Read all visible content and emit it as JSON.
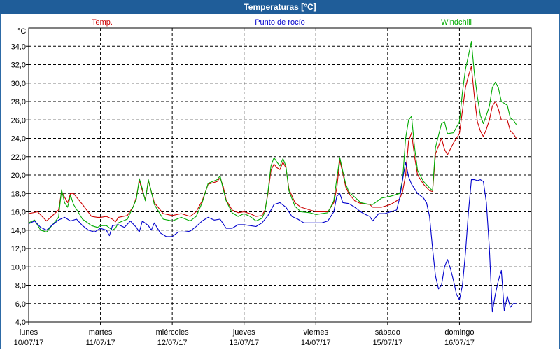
{
  "window": {
    "title": "Temperaturas [°C]"
  },
  "chart_data": {
    "type": "line",
    "title": "Temperaturas [°C]",
    "ylabel": "°C",
    "ylim": [
      4,
      36
    ],
    "yticks": [
      "4,0",
      "6,0",
      "8,0",
      "10,0",
      "12,0",
      "14,0",
      "16,0",
      "18,0",
      "20,0",
      "22,0",
      "24,0",
      "26,0",
      "28,0",
      "30,0",
      "32,0",
      "34,0"
    ],
    "grid": true,
    "day_ticks": [
      {
        "day": "lunes",
        "date": "10/07/17"
      },
      {
        "day": "martes",
        "date": "11/07/17"
      },
      {
        "day": "miércoles",
        "date": "12/07/17"
      },
      {
        "day": "jueves",
        "date": "13/07/17"
      },
      {
        "day": "viernes",
        "date": "14/07/17"
      },
      {
        "day": "sábado",
        "date": "15/07/17"
      },
      {
        "day": "domingo",
        "date": "16/07/17"
      }
    ],
    "x_unit": "hours from 10/07/17 00:00",
    "x_range": [
      0,
      168
    ],
    "series": [
      {
        "name": "Temp.",
        "color": "#cc0000",
        "points": [
          [
            0,
            15.8
          ],
          [
            3,
            16.0
          ],
          [
            6,
            15.0
          ],
          [
            8,
            15.6
          ],
          [
            10,
            16.2
          ],
          [
            11,
            18.2
          ],
          [
            12,
            17.6
          ],
          [
            13,
            17.0
          ],
          [
            14,
            18.0
          ],
          [
            15,
            18.0
          ],
          [
            18,
            16.8
          ],
          [
            21,
            15.5
          ],
          [
            23,
            15.4
          ],
          [
            24,
            15.4
          ],
          [
            26,
            15.5
          ],
          [
            28,
            15.2
          ],
          [
            29,
            14.9
          ],
          [
            30,
            15.4
          ],
          [
            33,
            15.6
          ],
          [
            35,
            16.6
          ],
          [
            36,
            17.6
          ],
          [
            37,
            19.4
          ],
          [
            38,
            18.3
          ],
          [
            39,
            17.3
          ],
          [
            40,
            19.4
          ],
          [
            41,
            18.2
          ],
          [
            42,
            17.0
          ],
          [
            45,
            15.8
          ],
          [
            48,
            15.6
          ],
          [
            51,
            15.8
          ],
          [
            54,
            15.5
          ],
          [
            56,
            16.0
          ],
          [
            58,
            17.2
          ],
          [
            60,
            19.0
          ],
          [
            63,
            19.3
          ],
          [
            64,
            19.7
          ],
          [
            65,
            18.8
          ],
          [
            66,
            17.3
          ],
          [
            68,
            16.2
          ],
          [
            70,
            15.9
          ],
          [
            72,
            16.0
          ],
          [
            74,
            15.8
          ],
          [
            76,
            15.5
          ],
          [
            78,
            15.6
          ],
          [
            79,
            16.2
          ],
          [
            80,
            18.0
          ],
          [
            81,
            20.5
          ],
          [
            82,
            21.2
          ],
          [
            83,
            20.8
          ],
          [
            84,
            20.6
          ],
          [
            85,
            21.4
          ],
          [
            86,
            20.8
          ],
          [
            87,
            18.5
          ],
          [
            89,
            17.0
          ],
          [
            91,
            16.5
          ],
          [
            94,
            16.2
          ],
          [
            96,
            16.0
          ],
          [
            98,
            16.0
          ],
          [
            100,
            16.0
          ],
          [
            102,
            17.0
          ],
          [
            103,
            18.6
          ],
          [
            104,
            21.6
          ],
          [
            105,
            20.2
          ],
          [
            106,
            18.7
          ],
          [
            107,
            18.0
          ],
          [
            109,
            17.2
          ],
          [
            111,
            16.9
          ],
          [
            114,
            16.8
          ],
          [
            115,
            16.5
          ],
          [
            118,
            16.5
          ],
          [
            121,
            16.8
          ],
          [
            124,
            17.4
          ],
          [
            125,
            18.2
          ],
          [
            126,
            20.0
          ],
          [
            127,
            23.7
          ],
          [
            128,
            24.6
          ],
          [
            129,
            22.0
          ],
          [
            130,
            20.0
          ],
          [
            132,
            19.0
          ],
          [
            134,
            18.3
          ],
          [
            135,
            18.2
          ],
          [
            136,
            22.3
          ],
          [
            138,
            24.0
          ],
          [
            139,
            22.8
          ],
          [
            140,
            22.2
          ],
          [
            142,
            23.5
          ],
          [
            144,
            24.5
          ],
          [
            145,
            27.0
          ],
          [
            146,
            29.5
          ],
          [
            147,
            30.8
          ],
          [
            148,
            31.8
          ],
          [
            149,
            28.5
          ],
          [
            150,
            25.8
          ],
          [
            151,
            24.8
          ],
          [
            152,
            24.2
          ],
          [
            153,
            25.0
          ],
          [
            154,
            26.0
          ],
          [
            155,
            27.5
          ],
          [
            156,
            28.0
          ],
          [
            157,
            27.2
          ],
          [
            158,
            26.0
          ],
          [
            160,
            26.0
          ],
          [
            161,
            24.8
          ],
          [
            162,
            24.5
          ],
          [
            163,
            24.0
          ]
        ]
      },
      {
        "name": "Punto de rocío",
        "color": "#0000cc",
        "points": [
          [
            0,
            14.7
          ],
          [
            2,
            15.0
          ],
          [
            4,
            14.3
          ],
          [
            6,
            14.0
          ],
          [
            8,
            14.6
          ],
          [
            10,
            15.1
          ],
          [
            12,
            15.4
          ],
          [
            14,
            15.0
          ],
          [
            16,
            15.2
          ],
          [
            18,
            14.5
          ],
          [
            20,
            14.0
          ],
          [
            22,
            13.8
          ],
          [
            24,
            14.2
          ],
          [
            26,
            14.0
          ],
          [
            27,
            13.4
          ],
          [
            28,
            14.5
          ],
          [
            30,
            14.6
          ],
          [
            32,
            14.3
          ],
          [
            34,
            15.0
          ],
          [
            36,
            14.3
          ],
          [
            37,
            13.8
          ],
          [
            38,
            15.0
          ],
          [
            40,
            14.5
          ],
          [
            41,
            14.0
          ],
          [
            42,
            14.8
          ],
          [
            44,
            13.7
          ],
          [
            46,
            13.3
          ],
          [
            48,
            13.3
          ],
          [
            50,
            13.8
          ],
          [
            52,
            13.8
          ],
          [
            54,
            13.9
          ],
          [
            56,
            14.4
          ],
          [
            58,
            15.0
          ],
          [
            60,
            15.4
          ],
          [
            62,
            15.1
          ],
          [
            64,
            15.2
          ],
          [
            66,
            14.2
          ],
          [
            68,
            14.2
          ],
          [
            70,
            14.6
          ],
          [
            72,
            14.6
          ],
          [
            74,
            14.5
          ],
          [
            76,
            14.4
          ],
          [
            78,
            14.8
          ],
          [
            80,
            15.6
          ],
          [
            82,
            16.8
          ],
          [
            84,
            17.0
          ],
          [
            86,
            16.5
          ],
          [
            88,
            15.5
          ],
          [
            90,
            15.2
          ],
          [
            92,
            14.8
          ],
          [
            94,
            14.8
          ],
          [
            96,
            14.8
          ],
          [
            98,
            14.8
          ],
          [
            100,
            15.0
          ],
          [
            102,
            16.0
          ],
          [
            103,
            17.7
          ],
          [
            104,
            18.0
          ],
          [
            105,
            17.0
          ],
          [
            107,
            16.9
          ],
          [
            109,
            16.5
          ],
          [
            111,
            16.0
          ],
          [
            112,
            15.8
          ],
          [
            114,
            15.5
          ],
          [
            115,
            15.0
          ],
          [
            117,
            15.8
          ],
          [
            119,
            15.8
          ],
          [
            121,
            16.0
          ],
          [
            123,
            16.2
          ],
          [
            124,
            17.5
          ],
          [
            125,
            19.5
          ],
          [
            126,
            21.4
          ],
          [
            127,
            19.8
          ],
          [
            128,
            19.0
          ],
          [
            130,
            18.0
          ],
          [
            132,
            17.5
          ],
          [
            133,
            17.0
          ],
          [
            134,
            15.5
          ],
          [
            135,
            12.0
          ],
          [
            136,
            9.0
          ],
          [
            137,
            7.6
          ],
          [
            138,
            8.0
          ],
          [
            139,
            10.0
          ],
          [
            140,
            10.8
          ],
          [
            141,
            9.8
          ],
          [
            142,
            8.5
          ],
          [
            143,
            7.0
          ],
          [
            144,
            6.4
          ],
          [
            145,
            8.0
          ],
          [
            146,
            11.5
          ],
          [
            147,
            16.0
          ],
          [
            148,
            19.5
          ],
          [
            149,
            19.5
          ],
          [
            150,
            19.4
          ],
          [
            151,
            19.5
          ],
          [
            152,
            19.3
          ],
          [
            153,
            17.0
          ],
          [
            154,
            12.0
          ],
          [
            155,
            5.1
          ],
          [
            156,
            7.0
          ],
          [
            157,
            8.5
          ],
          [
            158,
            9.6
          ],
          [
            159,
            5.2
          ],
          [
            160,
            6.8
          ],
          [
            161,
            5.6
          ],
          [
            162,
            6.0
          ],
          [
            163,
            6.0
          ]
        ]
      },
      {
        "name": "Windchill",
        "color": "#00aa00",
        "points": [
          [
            0,
            14.8
          ],
          [
            2,
            15.1
          ],
          [
            4,
            14.0
          ],
          [
            6,
            13.8
          ],
          [
            8,
            14.6
          ],
          [
            10,
            15.4
          ],
          [
            11,
            18.4
          ],
          [
            12,
            17.0
          ],
          [
            13,
            16.5
          ],
          [
            14,
            17.8
          ],
          [
            15,
            16.8
          ],
          [
            18,
            15.2
          ],
          [
            21,
            14.5
          ],
          [
            23,
            14.3
          ],
          [
            24,
            14.5
          ],
          [
            26,
            14.5
          ],
          [
            28,
            14.0
          ],
          [
            29,
            14.2
          ],
          [
            30,
            14.8
          ],
          [
            33,
            15.2
          ],
          [
            35,
            16.6
          ],
          [
            36,
            17.4
          ],
          [
            37,
            19.6
          ],
          [
            38,
            18.5
          ],
          [
            39,
            17.2
          ],
          [
            40,
            19.5
          ],
          [
            41,
            18.2
          ],
          [
            42,
            16.8
          ],
          [
            45,
            15.2
          ],
          [
            48,
            15.0
          ],
          [
            51,
            15.4
          ],
          [
            54,
            15.0
          ],
          [
            56,
            15.5
          ],
          [
            58,
            17.0
          ],
          [
            60,
            19.1
          ],
          [
            63,
            19.5
          ],
          [
            64,
            19.9
          ],
          [
            65,
            18.5
          ],
          [
            66,
            17.2
          ],
          [
            68,
            15.9
          ],
          [
            70,
            15.5
          ],
          [
            72,
            15.8
          ],
          [
            74,
            15.5
          ],
          [
            76,
            15.0
          ],
          [
            78,
            15.3
          ],
          [
            79,
            16.0
          ],
          [
            80,
            18.2
          ],
          [
            81,
            21.0
          ],
          [
            82,
            21.9
          ],
          [
            83,
            21.4
          ],
          [
            84,
            21.0
          ],
          [
            85,
            21.8
          ],
          [
            86,
            21.0
          ],
          [
            87,
            18.3
          ],
          [
            89,
            16.6
          ],
          [
            91,
            16.0
          ],
          [
            94,
            15.9
          ],
          [
            96,
            15.7
          ],
          [
            98,
            15.8
          ],
          [
            100,
            15.9
          ],
          [
            102,
            17.2
          ],
          [
            103,
            19.6
          ],
          [
            104,
            21.9
          ],
          [
            105,
            20.4
          ],
          [
            106,
            19.0
          ],
          [
            107,
            18.2
          ],
          [
            109,
            17.6
          ],
          [
            111,
            17.0
          ],
          [
            114,
            16.8
          ],
          [
            115,
            16.8
          ],
          [
            118,
            17.5
          ],
          [
            121,
            17.7
          ],
          [
            124,
            18.0
          ],
          [
            125,
            19.5
          ],
          [
            126,
            24.0
          ],
          [
            127,
            26.0
          ],
          [
            128,
            26.4
          ],
          [
            129,
            23.0
          ],
          [
            130,
            20.5
          ],
          [
            132,
            19.3
          ],
          [
            134,
            18.6
          ],
          [
            135,
            18.3
          ],
          [
            136,
            23.0
          ],
          [
            138,
            25.6
          ],
          [
            139,
            25.8
          ],
          [
            140,
            24.5
          ],
          [
            142,
            24.6
          ],
          [
            144,
            25.8
          ],
          [
            145,
            29.0
          ],
          [
            146,
            31.5
          ],
          [
            147,
            33.0
          ],
          [
            148,
            34.5
          ],
          [
            149,
            31.0
          ],
          [
            150,
            28.5
          ],
          [
            151,
            26.5
          ],
          [
            152,
            25.6
          ],
          [
            153,
            26.5
          ],
          [
            154,
            27.5
          ],
          [
            155,
            29.5
          ],
          [
            156,
            30.1
          ],
          [
            157,
            29.5
          ],
          [
            158,
            28.0
          ],
          [
            160,
            27.6
          ],
          [
            161,
            26.2
          ],
          [
            162,
            26.0
          ],
          [
            163,
            25.5
          ]
        ]
      }
    ]
  }
}
